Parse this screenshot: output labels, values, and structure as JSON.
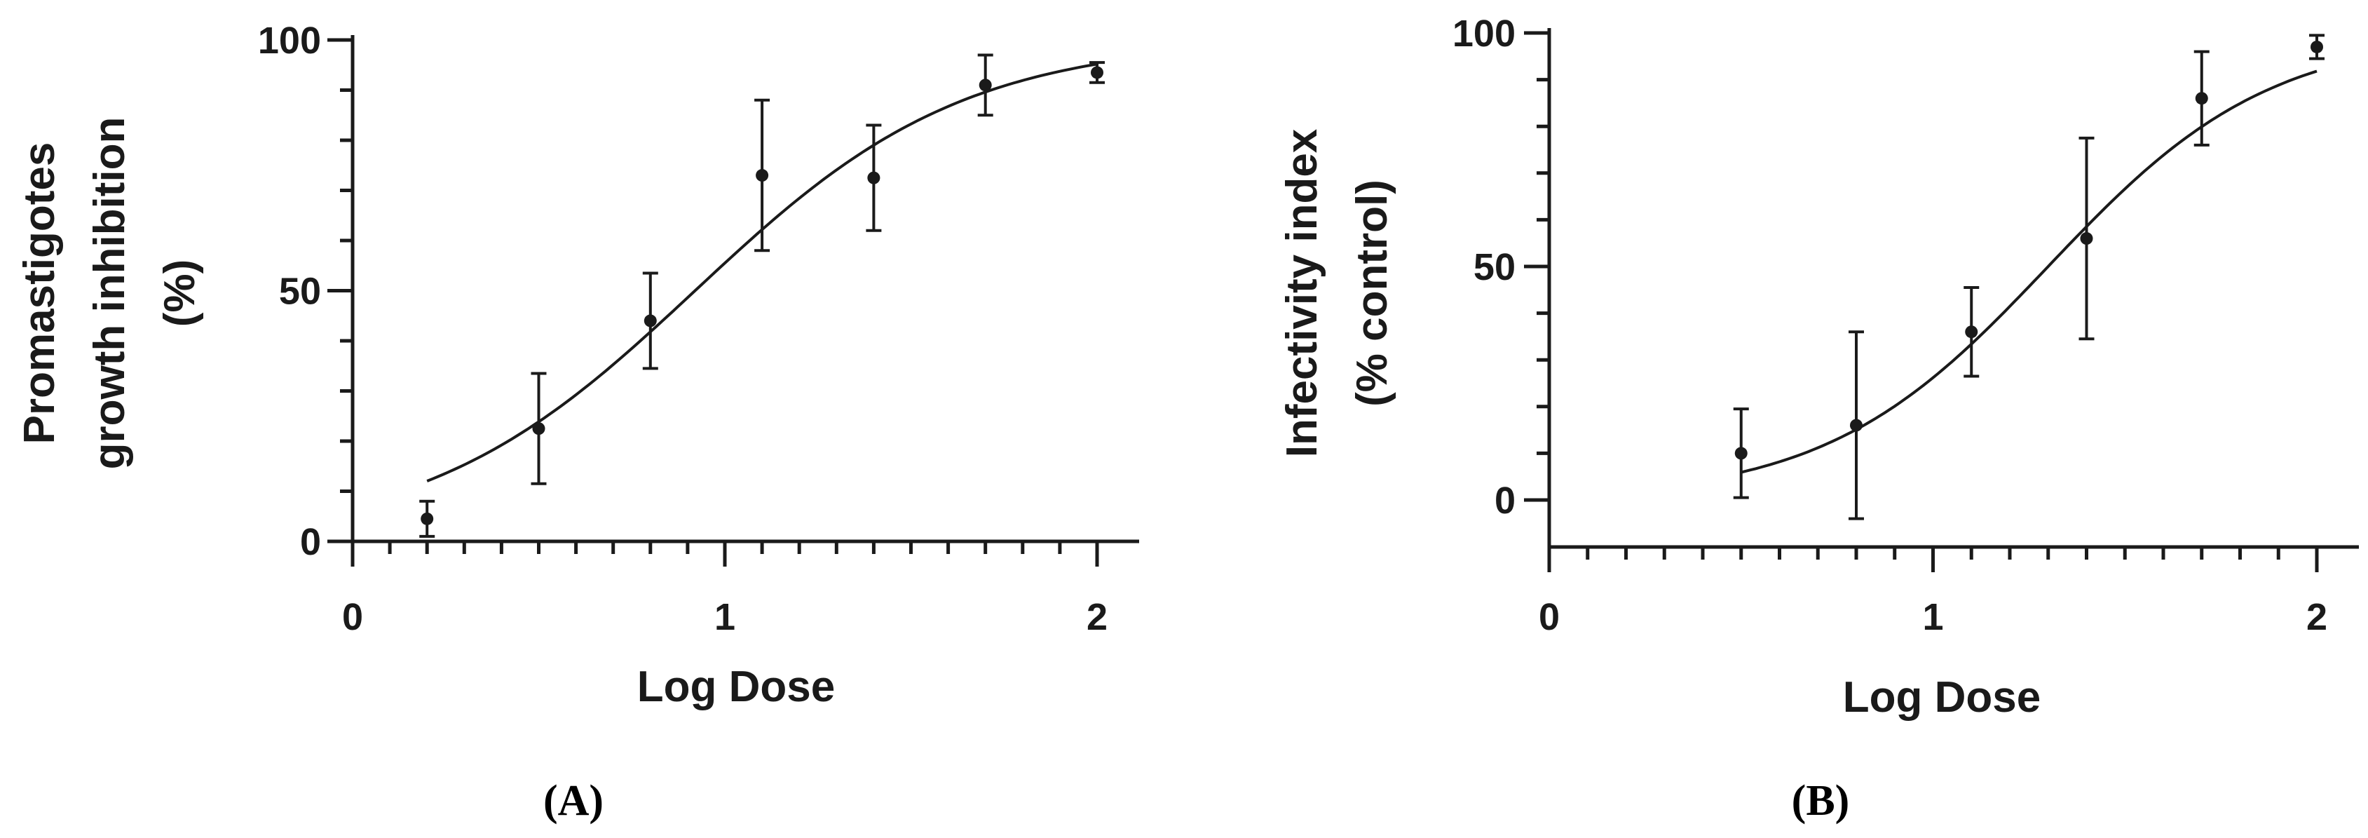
{
  "chart_data": [
    {
      "type": "scatter",
      "panel_label": "(A)",
      "xlabel": "Log Dose",
      "ylabel_lines": [
        "Promastigotes",
        "growth inhibition",
        "(%)"
      ],
      "xlim": [
        0,
        2.1
      ],
      "ylim": [
        0,
        100
      ],
      "xticks": [
        "0",
        "1",
        "2"
      ],
      "yticks": [
        "0",
        "50",
        "100"
      ],
      "fit": "sigmoidal dose-response",
      "fit_range": [
        0.2,
        2.0
      ],
      "fit_params": {
        "bottom": 0,
        "top": 100,
        "log_ec50": 0.92,
        "hill": 1.2
      },
      "points": [
        {
          "x": 0.2,
          "y": 4.5,
          "err": 3.5
        },
        {
          "x": 0.5,
          "y": 22.5,
          "err": 11
        },
        {
          "x": 0.8,
          "y": 44,
          "err": 9.5
        },
        {
          "x": 1.1,
          "y": 73,
          "err": 15
        },
        {
          "x": 1.4,
          "y": 72.5,
          "err": 10.5
        },
        {
          "x": 1.7,
          "y": 91,
          "err": 6
        },
        {
          "x": 2.0,
          "y": 93.5,
          "err": 2
        }
      ]
    },
    {
      "type": "scatter",
      "panel_label": "(B)",
      "xlabel": "Log Dose",
      "ylabel_lines": [
        "Infectivity index",
        "(% control)"
      ],
      "xlim": [
        0,
        2.1
      ],
      "ylim": [
        -10,
        100
      ],
      "xticks": [
        "0",
        "1",
        "2"
      ],
      "yticks": [
        "0",
        "50",
        "100"
      ],
      "fit": "sigmoidal dose-response",
      "fit_range": [
        0.5,
        2.0
      ],
      "fit_params": {
        "bottom": 0,
        "top": 100,
        "log_ec50": 1.3,
        "hill": 1.5
      },
      "points": [
        {
          "x": 0.5,
          "y": 10,
          "err": 9.5
        },
        {
          "x": 0.8,
          "y": 16,
          "err": 20
        },
        {
          "x": 1.1,
          "y": 36,
          "err": 9.5
        },
        {
          "x": 1.4,
          "y": 56,
          "err": 21.5
        },
        {
          "x": 1.7,
          "y": 86,
          "err": 10
        },
        {
          "x": 2.0,
          "y": 97,
          "err": 2.5
        }
      ]
    }
  ]
}
